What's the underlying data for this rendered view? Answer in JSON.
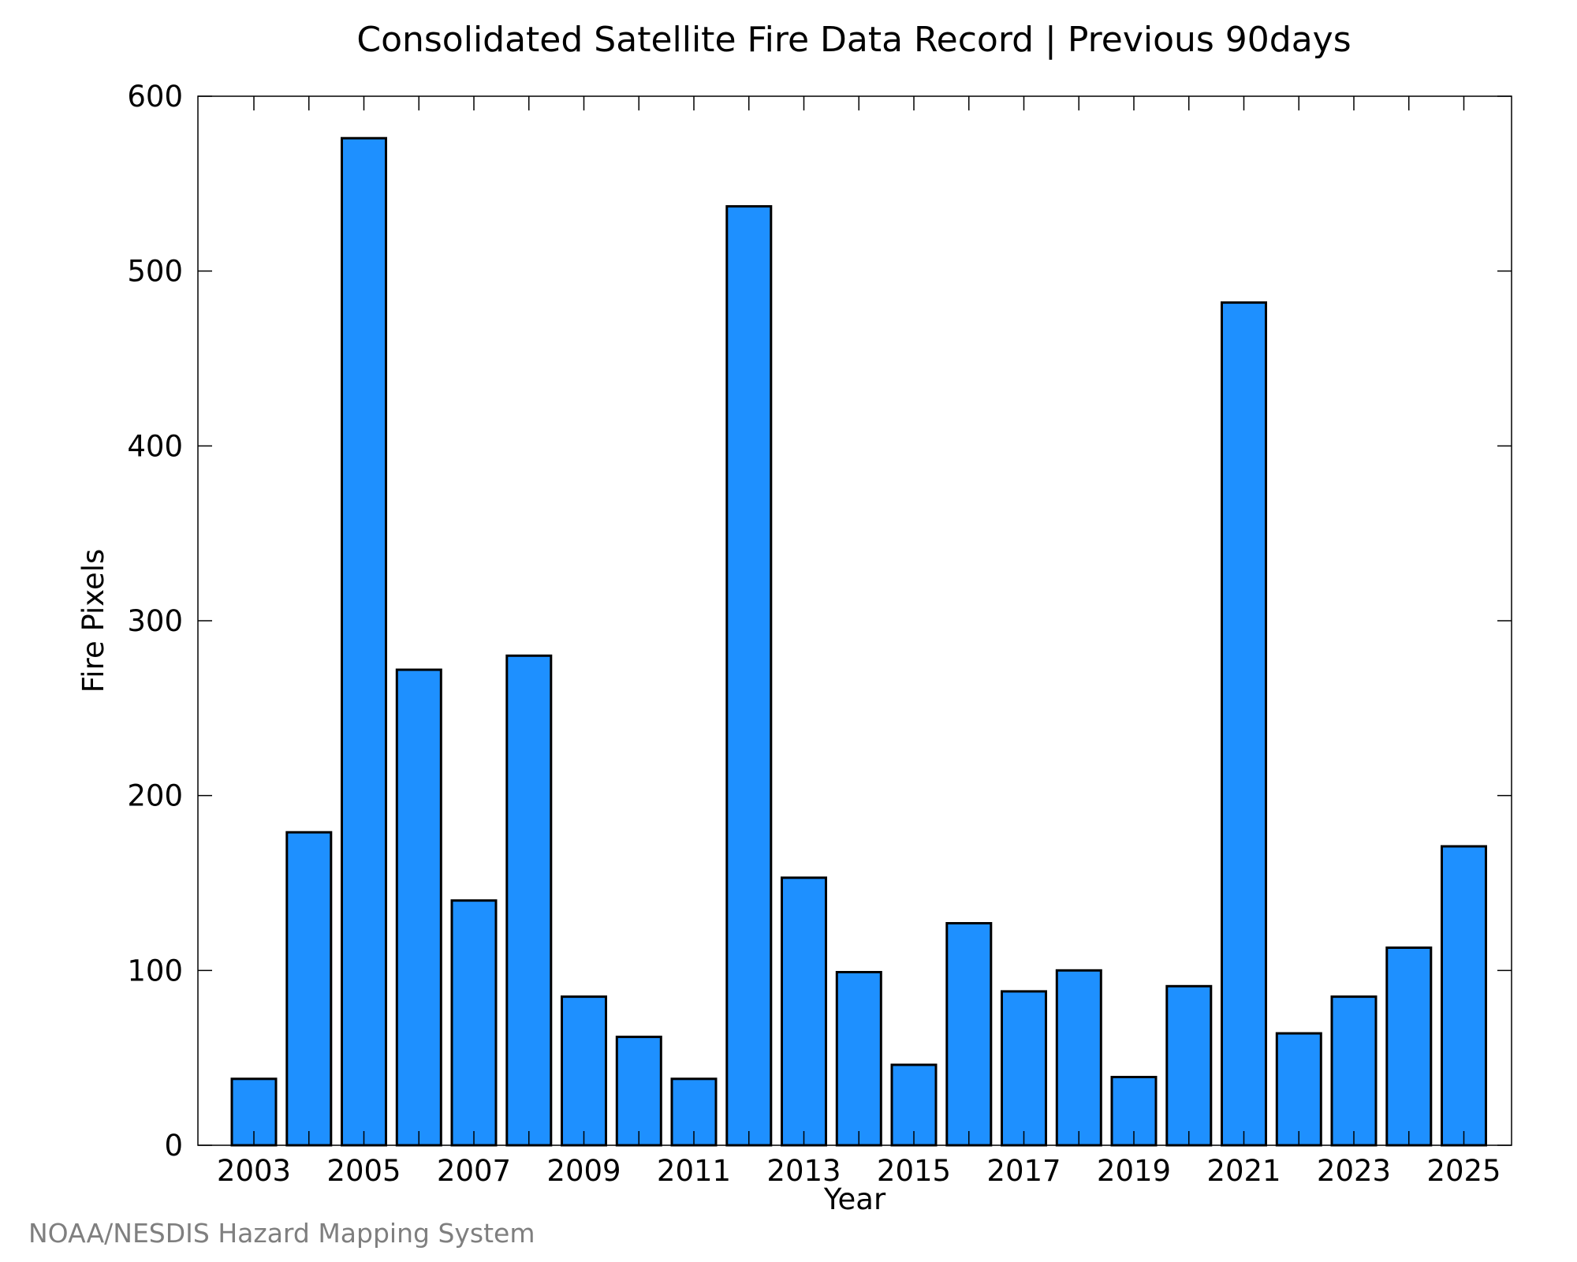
{
  "chart_data": {
    "type": "bar",
    "title": "Consolidated Satellite Fire Data Record | Previous 90days",
    "xlabel": "Year",
    "ylabel": "Fire Pixels",
    "categories": [
      "2003",
      "2004",
      "2005",
      "2006",
      "2007",
      "2008",
      "2009",
      "2010",
      "2011",
      "2012",
      "2013",
      "2014",
      "2015",
      "2016",
      "2017",
      "2018",
      "2019",
      "2020",
      "2021",
      "2022",
      "2023",
      "2024",
      "2025"
    ],
    "values": [
      38,
      179,
      576,
      272,
      140,
      280,
      85,
      62,
      38,
      537,
      153,
      99,
      46,
      127,
      88,
      100,
      39,
      91,
      482,
      64,
      85,
      113,
      171
    ],
    "xtick_labels": [
      "2003",
      "2005",
      "2007",
      "2009",
      "2011",
      "2013",
      "2015",
      "2017",
      "2019",
      "2021",
      "2023",
      "2025"
    ],
    "ytick_labels": [
      "0",
      "100",
      "200",
      "300",
      "400",
      "500",
      "600"
    ],
    "yticks": [
      0,
      100,
      200,
      300,
      400,
      500,
      600
    ],
    "ylim": [
      0,
      600
    ],
    "grid": false,
    "legend": "none",
    "bar_color": "#1e90ff",
    "edge_color": "#000000"
  },
  "footer": {
    "credit": "NOAA/NESDIS Hazard Mapping System"
  }
}
